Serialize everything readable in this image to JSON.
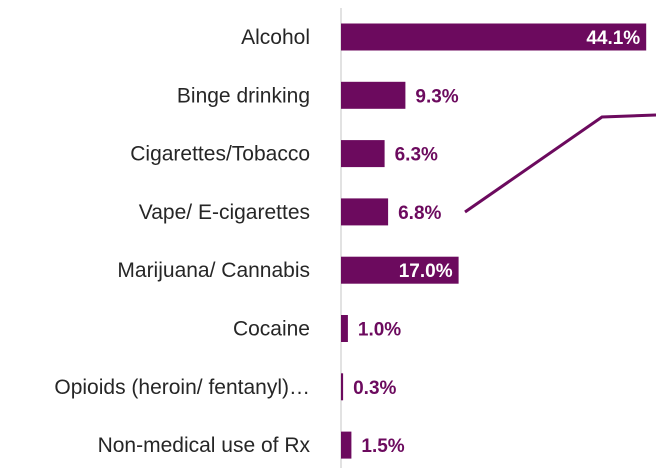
{
  "chart_data": {
    "type": "bar",
    "orientation": "horizontal",
    "categories": [
      "Alcohol",
      "Binge drinking",
      "Cigarettes/Tobacco",
      "Vape/ E-cigarettes",
      "Marijuana/ Cannabis",
      "Cocaine",
      "Opioids (heroin/ fentanyl)…",
      "Non-medical use of Rx"
    ],
    "values": [
      44.1,
      9.3,
      6.3,
      6.8,
      17.0,
      1.0,
      0.3,
      1.5
    ],
    "value_labels": [
      "44.1%",
      "9.3%",
      "6.3%",
      "6.8%",
      "17.0%",
      "1.0%",
      "0.3%",
      "1.5%"
    ],
    "title": "",
    "xlabel": "",
    "ylabel": "",
    "grid": false,
    "legend": "none",
    "colors": {
      "bar": "#6C0A5E",
      "label_outside": "#6C0A5E",
      "label_inside": "#FFFFFF",
      "category_text": "#262626",
      "axis": "#D9D9D9",
      "callout": "#6C0A5E"
    }
  }
}
